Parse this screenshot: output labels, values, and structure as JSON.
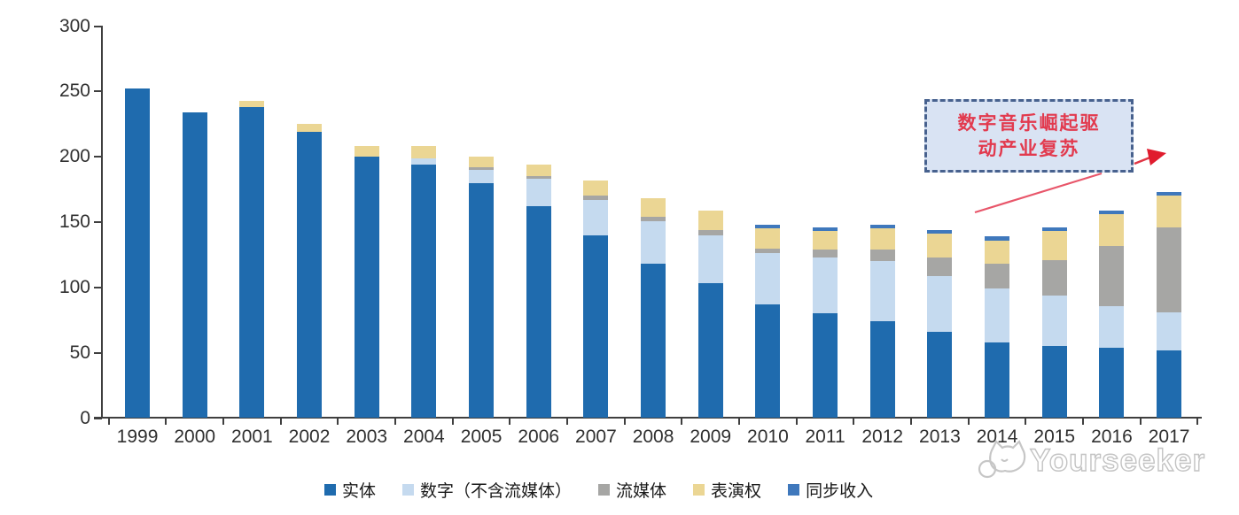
{
  "chart_data": {
    "type": "bar",
    "stacked": true,
    "title": "",
    "xlabel": "",
    "ylabel": "",
    "ylim": [
      0,
      300
    ],
    "y_ticks": [
      0,
      50,
      100,
      150,
      200,
      250,
      300
    ],
    "grid": false,
    "legend_position": "bottom",
    "categories": [
      "1999",
      "2000",
      "2001",
      "2002",
      "2003",
      "2004",
      "2005",
      "2006",
      "2007",
      "2008",
      "2009",
      "2010",
      "2011",
      "2012",
      "2013",
      "2014",
      "2015",
      "2016",
      "2017"
    ],
    "series": [
      {
        "name": "实体",
        "color": "#1F6BAE",
        "values": [
          252,
          234,
          238,
          219,
          200,
          194,
          180,
          162,
          140,
          118,
          103,
          87,
          80,
          74,
          66,
          58,
          55,
          54,
          52
        ]
      },
      {
        "name": "数字（不含流媒体）",
        "color": "#C5DAEF",
        "values": [
          0,
          0,
          0,
          0,
          0,
          5,
          10,
          21,
          27,
          33,
          37,
          39,
          43,
          46,
          43,
          41,
          39,
          32,
          29
        ]
      },
      {
        "name": "流媒体",
        "color": "#A6A6A4",
        "values": [
          0,
          0,
          0,
          0,
          0,
          0,
          2,
          2,
          3,
          3,
          4,
          4,
          6,
          9,
          14,
          19,
          27,
          46,
          65
        ]
      },
      {
        "name": "表演权",
        "color": "#EBD694",
        "values": [
          0,
          0,
          5,
          6,
          8,
          9,
          8,
          9,
          12,
          14,
          15,
          15,
          14,
          16,
          18,
          18,
          22,
          24,
          24
        ]
      },
      {
        "name": "同步收入",
        "color": "#3F78BC",
        "values": [
          0,
          0,
          0,
          0,
          0,
          0,
          0,
          0,
          0,
          0,
          0,
          3,
          3,
          3,
          3,
          3,
          3,
          3,
          3
        ]
      }
    ]
  },
  "annotation": {
    "line1": "数字音乐崛起驱",
    "line2": "动产业复苏",
    "text_color": "#e23a4e",
    "arrow_color": "#e8434f"
  },
  "watermark": {
    "text": "Yourseeker"
  }
}
